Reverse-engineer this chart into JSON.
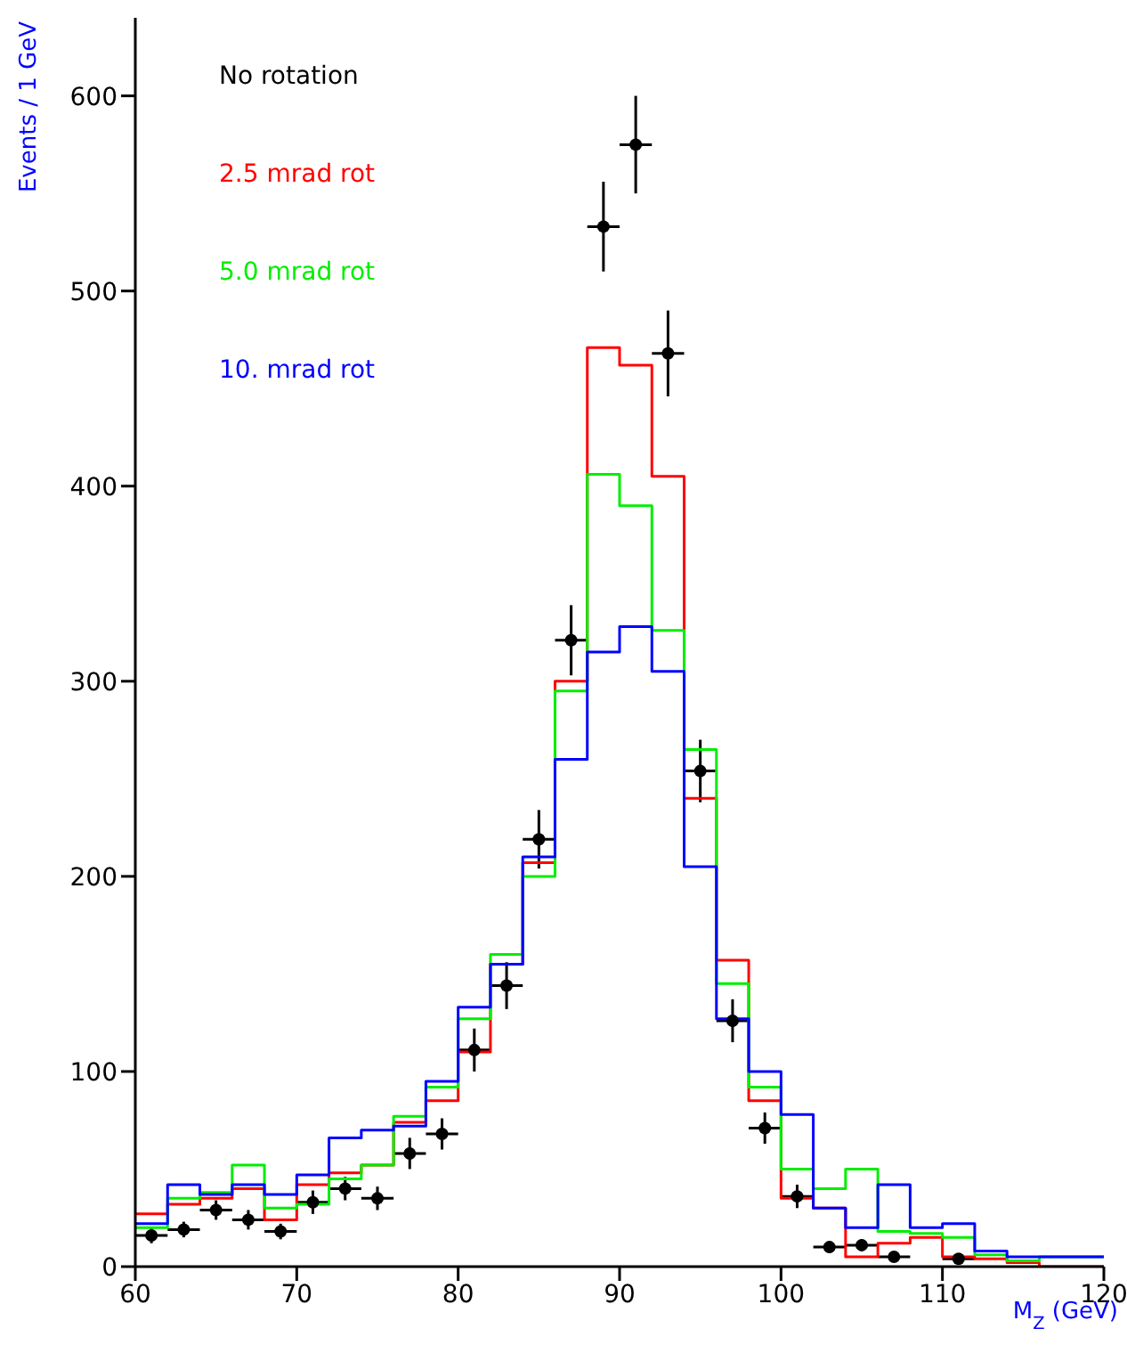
{
  "chart_data": {
    "type": "histogram",
    "xlabel": "M$_{Z}$ (GeV)",
    "ylabel": "Events / 1 GeV",
    "bins": [
      60,
      62,
      64,
      66,
      68,
      70,
      72,
      74,
      76,
      78,
      80,
      82,
      84,
      86,
      88,
      90,
      92,
      94,
      96,
      98,
      100,
      102,
      104,
      106,
      108,
      110,
      112,
      114,
      116,
      118,
      120
    ],
    "series": [
      {
        "name": "No rotation",
        "type": "scatter",
        "color": "#000000",
        "x": [
          61,
          63,
          65,
          67,
          69,
          71,
          73,
          75,
          77,
          79,
          81,
          83,
          85,
          87,
          89,
          91,
          93,
          95,
          97,
          99,
          101,
          103,
          105,
          107,
          111
        ],
        "values": [
          16,
          19,
          29,
          24,
          18,
          33,
          40,
          35,
          58,
          68,
          111,
          144,
          219,
          321,
          533,
          575,
          468,
          254,
          126,
          71,
          36,
          10,
          11,
          5,
          4
        ],
        "errors": [
          4,
          4,
          5,
          5,
          4,
          6,
          6,
          6,
          8,
          8,
          11,
          12,
          15,
          18,
          23,
          25,
          22,
          16,
          11,
          8,
          6,
          3,
          3,
          2,
          2
        ],
        "xerrors": [
          1,
          1,
          1,
          1,
          1,
          1,
          1,
          1,
          1,
          1,
          1,
          1,
          1,
          1,
          1,
          1,
          1,
          1,
          1,
          1,
          1,
          1,
          1,
          1,
          1
        ]
      },
      {
        "name": "2.5 mrad rot",
        "color": "#ff0000",
        "values": [
          27,
          32,
          35,
          40,
          24,
          42,
          48,
          52,
          74,
          85,
          110,
          155,
          207,
          300,
          471,
          462,
          405,
          240,
          157,
          85,
          35,
          30,
          5,
          12,
          15,
          5,
          4,
          2,
          0,
          0
        ]
      },
      {
        "name": "5.0 mrad rot",
        "color": "#00ee00",
        "values": [
          20,
          35,
          38,
          52,
          30,
          32,
          45,
          52,
          77,
          92,
          127,
          160,
          200,
          295,
          406,
          390,
          326,
          265,
          145,
          92,
          50,
          40,
          50,
          18,
          17,
          15,
          6,
          3,
          5,
          5
        ]
      },
      {
        "name": "10. mrad rot",
        "color": "#0000ff",
        "values": [
          22,
          42,
          37,
          42,
          37,
          47,
          66,
          70,
          72,
          95,
          133,
          155,
          210,
          260,
          315,
          328,
          305,
          205,
          127,
          100,
          78,
          30,
          20,
          42,
          20,
          22,
          8,
          5,
          5,
          5
        ]
      }
    ],
    "xlim": [
      60,
      120
    ],
    "xticks": [
      60,
      70,
      80,
      90,
      100,
      110,
      120
    ],
    "ylim": [
      0,
      640
    ],
    "yticks": [
      0,
      100,
      200,
      300,
      400,
      500,
      600
    ],
    "grid": false,
    "legend": "top left"
  }
}
